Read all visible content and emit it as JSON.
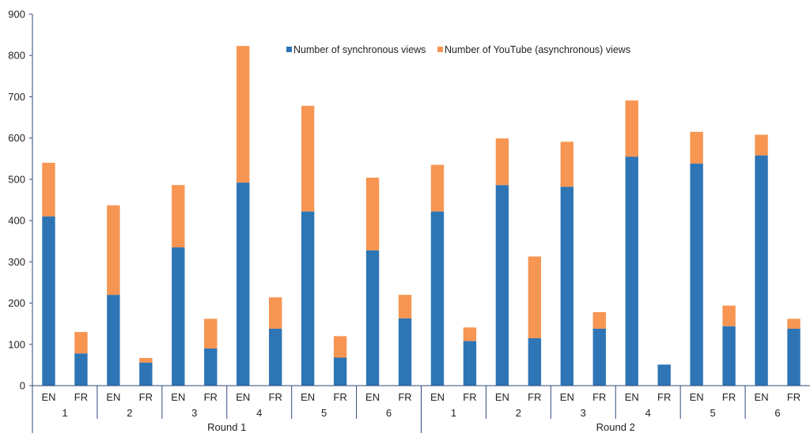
{
  "chart_data": {
    "type": "bar",
    "stacked": true,
    "title": "",
    "xlabel": "",
    "ylabel": "",
    "ylim": [
      0,
      900
    ],
    "yticks": [
      0,
      100,
      200,
      300,
      400,
      500,
      600,
      700,
      800,
      900
    ],
    "grid": false,
    "legend_position": "top-center",
    "colors": {
      "synchronous": "#2e75b6",
      "youtube": "#f79552",
      "axis": "#2f4a7a"
    },
    "groups": [
      {
        "label": "Round 1",
        "sub": [
          {
            "label": "1",
            "bars": [
              {
                "cat": "EN",
                "sync": 410,
                "yt": 130
              },
              {
                "cat": "FR",
                "sync": 78,
                "yt": 52
              }
            ]
          },
          {
            "label": "2",
            "bars": [
              {
                "cat": "EN",
                "sync": 220,
                "yt": 217
              },
              {
                "cat": "FR",
                "sync": 56,
                "yt": 11
              }
            ]
          },
          {
            "label": "3",
            "bars": [
              {
                "cat": "EN",
                "sync": 335,
                "yt": 151
              },
              {
                "cat": "FR",
                "sync": 90,
                "yt": 72
              }
            ]
          },
          {
            "label": "4",
            "bars": [
              {
                "cat": "EN",
                "sync": 492,
                "yt": 331
              },
              {
                "cat": "FR",
                "sync": 138,
                "yt": 76
              }
            ]
          },
          {
            "label": "5",
            "bars": [
              {
                "cat": "EN",
                "sync": 422,
                "yt": 256
              },
              {
                "cat": "FR",
                "sync": 68,
                "yt": 52
              }
            ]
          },
          {
            "label": "6",
            "bars": [
              {
                "cat": "EN",
                "sync": 328,
                "yt": 176
              },
              {
                "cat": "FR",
                "sync": 163,
                "yt": 57
              }
            ]
          }
        ]
      },
      {
        "label": "Round 2",
        "sub": [
          {
            "label": "1",
            "bars": [
              {
                "cat": "EN",
                "sync": 422,
                "yt": 113
              },
              {
                "cat": "FR",
                "sync": 108,
                "yt": 33
              }
            ]
          },
          {
            "label": "2",
            "bars": [
              {
                "cat": "EN",
                "sync": 486,
                "yt": 113
              },
              {
                "cat": "FR",
                "sync": 115,
                "yt": 198
              }
            ]
          },
          {
            "label": "3",
            "bars": [
              {
                "cat": "EN",
                "sync": 482,
                "yt": 109
              },
              {
                "cat": "FR",
                "sync": 138,
                "yt": 40
              }
            ]
          },
          {
            "label": "4",
            "bars": [
              {
                "cat": "EN",
                "sync": 555,
                "yt": 136
              },
              {
                "cat": "FR",
                "sync": 51,
                "yt": 0
              }
            ]
          },
          {
            "label": "5",
            "bars": [
              {
                "cat": "EN",
                "sync": 538,
                "yt": 77
              },
              {
                "cat": "FR",
                "sync": 144,
                "yt": 50
              }
            ]
          },
          {
            "label": "6",
            "bars": [
              {
                "cat": "EN",
                "sync": 558,
                "yt": 50
              },
              {
                "cat": "FR",
                "sync": 138,
                "yt": 24
              }
            ]
          }
        ]
      }
    ],
    "series": [
      {
        "key": "sync",
        "name": "Number of synchronous views",
        "color": "#2e75b6"
      },
      {
        "key": "yt",
        "name": "Number of YouTube (asynchronous) views",
        "color": "#f79552"
      }
    ]
  }
}
